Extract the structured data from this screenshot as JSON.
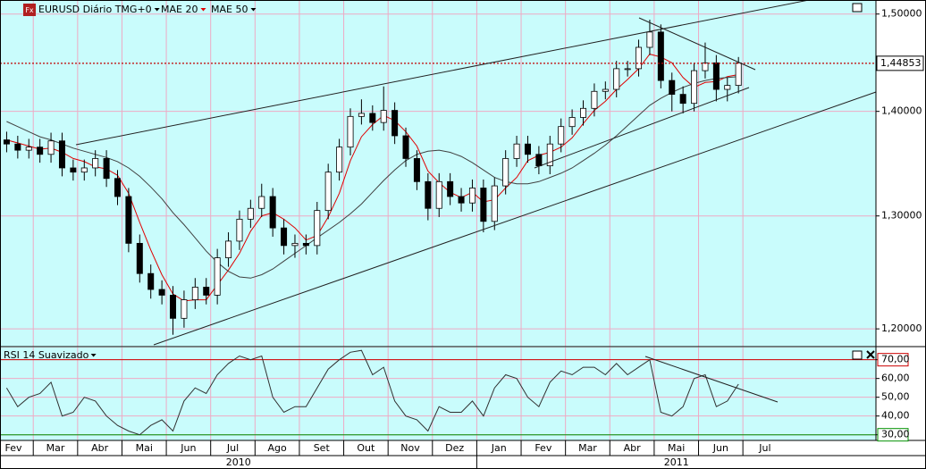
{
  "chart_data": [
    {
      "type": "candlestick",
      "title": "EURUSD Diário TMG+0",
      "x": [
        0.4,
        0.65,
        0.9,
        1.15,
        1.4,
        1.65,
        1.9,
        2.15,
        2.4,
        2.65,
        2.9,
        3.15,
        3.4,
        3.65,
        3.9,
        4.15,
        4.4,
        4.65,
        4.9,
        5.15,
        5.4,
        5.65,
        5.9,
        6.15,
        6.4,
        6.65,
        6.9,
        7.15,
        7.4,
        7.65,
        7.9,
        8.15,
        8.4,
        8.65,
        8.9,
        9.15,
        9.4,
        9.65,
        9.9,
        10.15,
        10.4,
        10.65,
        10.9,
        11.15,
        11.4,
        11.65,
        11.9,
        12.15,
        12.4,
        12.65,
        12.9,
        13.15,
        13.4,
        13.65,
        13.9,
        14.15,
        14.4,
        14.65,
        14.9,
        15.15,
        15.4,
        15.65,
        15.9,
        16.15,
        16.4,
        16.65,
        16.9
      ],
      "open": [
        1.372,
        1.368,
        1.362,
        1.365,
        1.358,
        1.371,
        1.345,
        1.341,
        1.345,
        1.354,
        1.335,
        1.318,
        1.275,
        1.248,
        1.234,
        1.229,
        1.209,
        1.225,
        1.236,
        1.229,
        1.262,
        1.277,
        1.297,
        1.307,
        1.318,
        1.289,
        1.273,
        1.275,
        1.273,
        1.305,
        1.341,
        1.365,
        1.395,
        1.398,
        1.389,
        1.401,
        1.376,
        1.354,
        1.332,
        1.307,
        1.332,
        1.318,
        1.312,
        1.326,
        1.295,
        1.328,
        1.354,
        1.368,
        1.358,
        1.347,
        1.368,
        1.385,
        1.394,
        1.403,
        1.42,
        1.422,
        1.443,
        1.443,
        1.465,
        1.481,
        1.431,
        1.417,
        1.408,
        1.441,
        1.449,
        1.422,
        1.426
      ],
      "high": [
        1.38,
        1.376,
        1.373,
        1.373,
        1.379,
        1.379,
        1.353,
        1.353,
        1.362,
        1.362,
        1.343,
        1.326,
        1.283,
        1.256,
        1.242,
        1.237,
        1.233,
        1.244,
        1.244,
        1.27,
        1.285,
        1.305,
        1.315,
        1.33,
        1.326,
        1.297,
        1.283,
        1.283,
        1.313,
        1.349,
        1.373,
        1.403,
        1.412,
        1.406,
        1.425,
        1.409,
        1.384,
        1.362,
        1.34,
        1.34,
        1.34,
        1.326,
        1.334,
        1.334,
        1.336,
        1.362,
        1.376,
        1.376,
        1.366,
        1.376,
        1.393,
        1.402,
        1.411,
        1.428,
        1.43,
        1.451,
        1.451,
        1.473,
        1.494,
        1.489,
        1.439,
        1.425,
        1.449,
        1.47,
        1.457,
        1.434,
        1.455
      ],
      "low": [
        1.36,
        1.354,
        1.354,
        1.35,
        1.35,
        1.337,
        1.333,
        1.333,
        1.337,
        1.327,
        1.31,
        1.267,
        1.24,
        1.226,
        1.221,
        1.195,
        1.201,
        1.217,
        1.221,
        1.221,
        1.254,
        1.269,
        1.289,
        1.299,
        1.281,
        1.265,
        1.262,
        1.265,
        1.265,
        1.297,
        1.333,
        1.357,
        1.387,
        1.381,
        1.381,
        1.368,
        1.346,
        1.324,
        1.296,
        1.299,
        1.31,
        1.304,
        1.304,
        1.285,
        1.287,
        1.32,
        1.346,
        1.35,
        1.339,
        1.339,
        1.36,
        1.377,
        1.386,
        1.395,
        1.412,
        1.414,
        1.435,
        1.435,
        1.457,
        1.423,
        1.4,
        1.398,
        1.4,
        1.433,
        1.41,
        1.41,
        1.418
      ],
      "close": [
        1.368,
        1.362,
        1.365,
        1.358,
        1.371,
        1.345,
        1.341,
        1.345,
        1.354,
        1.335,
        1.318,
        1.275,
        1.248,
        1.234,
        1.229,
        1.209,
        1.225,
        1.236,
        1.229,
        1.262,
        1.277,
        1.297,
        1.307,
        1.318,
        1.289,
        1.273,
        1.275,
        1.273,
        1.305,
        1.341,
        1.365,
        1.395,
        1.398,
        1.389,
        1.401,
        1.376,
        1.354,
        1.332,
        1.307,
        1.332,
        1.318,
        1.312,
        1.326,
        1.295,
        1.328,
        1.354,
        1.368,
        1.358,
        1.347,
        1.368,
        1.385,
        1.394,
        1.403,
        1.42,
        1.422,
        1.443,
        1.443,
        1.465,
        1.481,
        1.431,
        1.417,
        1.408,
        1.441,
        1.449,
        1.422,
        1.426,
        1.449
      ],
      "up_color": "#ffffff",
      "down_color": "#000000",
      "series": [
        {
          "name": "MAE 20",
          "color": "#e00000",
          "values": [
            1.372,
            1.369,
            1.366,
            1.363,
            1.364,
            1.36,
            1.354,
            1.351,
            1.346,
            1.344,
            1.338,
            1.321,
            1.294,
            1.269,
            1.247,
            1.23,
            1.224,
            1.225,
            1.225,
            1.238,
            1.251,
            1.266,
            1.286,
            1.3,
            1.303,
            1.297,
            1.289,
            1.278,
            1.282,
            1.299,
            1.321,
            1.352,
            1.375,
            1.387,
            1.396,
            1.391,
            1.38,
            1.366,
            1.342,
            1.331,
            1.322,
            1.317,
            1.322,
            1.313,
            1.315,
            1.326,
            1.336,
            1.352,
            1.357,
            1.36,
            1.365,
            1.374,
            1.388,
            1.401,
            1.41,
            1.422,
            1.432,
            1.443,
            1.458,
            1.455,
            1.449,
            1.434,
            1.424,
            1.429,
            1.43,
            1.435,
            1.437
          ]
        },
        {
          "name": "MAE 50",
          "color": "#404040",
          "values": [
            1.39,
            1.385,
            1.38,
            1.375,
            1.372,
            1.368,
            1.364,
            1.361,
            1.358,
            1.355,
            1.351,
            1.345,
            1.337,
            1.327,
            1.316,
            1.303,
            1.292,
            1.28,
            1.268,
            1.258,
            1.25,
            1.245,
            1.244,
            1.247,
            1.252,
            1.259,
            1.266,
            1.273,
            1.28,
            1.287,
            1.294,
            1.302,
            1.311,
            1.322,
            1.333,
            1.343,
            1.352,
            1.358,
            1.361,
            1.362,
            1.36,
            1.356,
            1.35,
            1.343,
            1.336,
            1.332,
            1.33,
            1.33,
            1.332,
            1.336,
            1.34,
            1.345,
            1.352,
            1.359,
            1.367,
            1.376,
            1.386,
            1.396,
            1.406,
            1.413,
            1.419,
            1.424,
            1.428,
            1.431,
            1.433,
            1.434,
            1.435
          ]
        }
      ],
      "xlim": [
        0.25,
        20
      ],
      "ylim": [
        1.185,
        1.515
      ],
      "log_scale": true,
      "grid": true,
      "yticks": [
        {
          "value": 1.5,
          "label": "1,50000"
        },
        {
          "value": 1.4,
          "label": "1,40000"
        },
        {
          "value": 1.3,
          "label": "1,30000"
        },
        {
          "value": 1.2,
          "label": "1,20000"
        }
      ],
      "last_price": {
        "value": 1.44853,
        "label": "1,44853"
      },
      "last_price_color": "#c00000"
    },
    {
      "type": "line",
      "title": "RSI 14 Suavizado",
      "color": "#303030",
      "x": [
        0.4,
        0.65,
        0.9,
        1.15,
        1.4,
        1.65,
        1.9,
        2.15,
        2.4,
        2.65,
        2.9,
        3.15,
        3.4,
        3.65,
        3.9,
        4.15,
        4.4,
        4.65,
        4.9,
        5.15,
        5.4,
        5.65,
        5.9,
        6.15,
        6.4,
        6.65,
        6.9,
        7.15,
        7.4,
        7.65,
        7.9,
        8.15,
        8.4,
        8.65,
        8.9,
        9.15,
        9.4,
        9.65,
        9.9,
        10.15,
        10.4,
        10.65,
        10.9,
        11.15,
        11.4,
        11.65,
        11.9,
        12.15,
        12.4,
        12.65,
        12.9,
        13.15,
        13.4,
        13.65,
        13.9,
        14.15,
        14.4,
        14.65,
        14.9,
        15.15,
        15.4,
        15.65,
        15.9,
        16.15,
        16.4,
        16.65,
        16.9
      ],
      "values": [
        55,
        45,
        50,
        52,
        58,
        40,
        42,
        50,
        48,
        40,
        35,
        32,
        30,
        35,
        38,
        32,
        48,
        55,
        52,
        62,
        68,
        72,
        70,
        72,
        50,
        42,
        45,
        45,
        55,
        65,
        70,
        74,
        75,
        62,
        66,
        48,
        40,
        38,
        32,
        45,
        42,
        42,
        48,
        40,
        55,
        62,
        60,
        50,
        45,
        58,
        64,
        62,
        66,
        66,
        62,
        68,
        62,
        66,
        70,
        42,
        40,
        45,
        60,
        62,
        45,
        48,
        57
      ],
      "xlim": [
        0.25,
        20
      ],
      "ylim": [
        27,
        76.5
      ],
      "grid": true,
      "yticks": [
        {
          "value": 70,
          "label": "70,00"
        },
        {
          "value": 60,
          "label": "60,00"
        },
        {
          "value": 50,
          "label": "50,00"
        },
        {
          "value": 40,
          "label": "40,00"
        },
        {
          "value": 30,
          "label": "30,00"
        }
      ],
      "levels": [
        {
          "value": 70,
          "color": "#cc0000"
        },
        {
          "value": 30,
          "color": "#009000"
        }
      ],
      "xticks": [
        {
          "value": 0,
          "label": "Fev"
        },
        {
          "value": 1,
          "label": "Mar"
        },
        {
          "value": 2,
          "label": "Abr"
        },
        {
          "value": 3,
          "label": "Mai"
        },
        {
          "value": 4,
          "label": "Jun"
        },
        {
          "value": 5,
          "label": "Jul"
        },
        {
          "value": 6,
          "label": "Ago"
        },
        {
          "value": 7,
          "label": "Set"
        },
        {
          "value": 8,
          "label": "Out"
        },
        {
          "value": 9,
          "label": "Nov"
        },
        {
          "value": 10,
          "label": "Dez"
        },
        {
          "value": 11,
          "label": "Jan"
        },
        {
          "value": 12,
          "label": "Fev"
        },
        {
          "value": 13,
          "label": "Mar"
        },
        {
          "value": 14,
          "label": "Abr"
        },
        {
          "value": 15,
          "label": "Mai"
        },
        {
          "value": 16,
          "label": "Jun"
        },
        {
          "value": 17,
          "label": "Jul"
        }
      ],
      "xgroups": [
        {
          "label": "2010",
          "from": 0,
          "to": 11
        },
        {
          "label": "2011",
          "from": 11,
          "to": 20
        }
      ]
    }
  ]
}
